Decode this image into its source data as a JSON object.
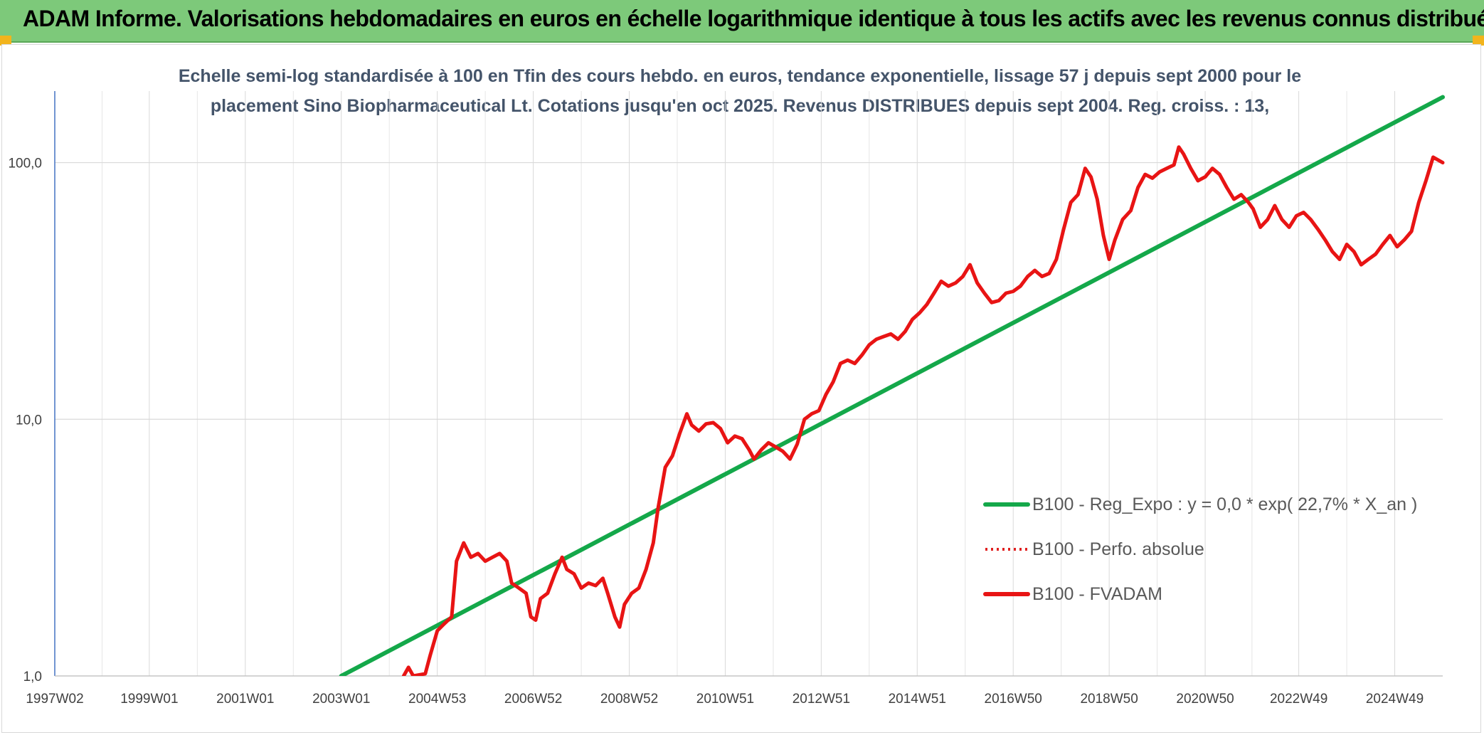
{
  "header": {
    "title": "ADAM Informe. Valorisations hebdomadaires en euros en échelle logarithmique identique à tous les actifs avec les revenus connus distribués"
  },
  "chart_data": {
    "type": "line",
    "title_lines": [
      "Echelle semi-log standardisée à 100 en Tfin des cours hebdo. en euros, tendance exponentielle, lissage 57 j depuis sept 2000 pour le",
      "placement Sino Biopharmaceutical Lt. Cotations jusqu'en oct 2025. Revenus DISTRIBUES depuis sept 2004. Reg. croiss. : 13,"
    ],
    "y_scale": "log",
    "ylim": [
      1,
      190
    ],
    "xlim": [
      1997.03,
      2025.95
    ],
    "y_ticks": [
      {
        "value": 1,
        "label": "1,0"
      },
      {
        "value": 10,
        "label": "10,0"
      },
      {
        "value": 100,
        "label": "100,0"
      }
    ],
    "x_ticks": [
      {
        "value": 1997.03,
        "label": "1997W02"
      },
      {
        "value": 1999.0,
        "label": "1999W01"
      },
      {
        "value": 2001.0,
        "label": "2001W01"
      },
      {
        "value": 2003.0,
        "label": "2003W01"
      },
      {
        "value": 2005.0,
        "label": "2004W53"
      },
      {
        "value": 2007.0,
        "label": "2006W52"
      },
      {
        "value": 2009.0,
        "label": "2008W52"
      },
      {
        "value": 2011.0,
        "label": "2010W51"
      },
      {
        "value": 2013.0,
        "label": "2012W51"
      },
      {
        "value": 2015.0,
        "label": "2014W51"
      },
      {
        "value": 2017.0,
        "label": "2016W50"
      },
      {
        "value": 2019.0,
        "label": "2018W50"
      },
      {
        "value": 2021.0,
        "label": "2020W50"
      },
      {
        "value": 2022.95,
        "label": "2022W49"
      },
      {
        "value": 2024.95,
        "label": "2024W49"
      }
    ],
    "grid": true,
    "legend_position": "right",
    "legend": [
      {
        "name": "B100 - Reg_Expo : y = 0,0 * exp( 22,7% *  X_an )",
        "color": "#14a84a",
        "style": "solid"
      },
      {
        "name": "B100 - Perfo. absolue",
        "color": "#e02020",
        "style": "dotted"
      },
      {
        "name": "B100 - FVADAM",
        "color": "#e81414",
        "style": "solid"
      }
    ],
    "series": [
      {
        "name": "B100 - Reg_Expo : y = 0,0 * exp( 22,7% *  X_an )",
        "color": "#14a84a",
        "points": [
          [
            2003.0,
            1.0
          ],
          [
            2025.95,
            180.0
          ]
        ]
      },
      {
        "name": "B100 - FVADAM",
        "color": "#e81414",
        "points": [
          [
            2004.3,
            1.0
          ],
          [
            2004.4,
            1.08
          ],
          [
            2004.5,
            1.0
          ],
          [
            2004.75,
            1.02
          ],
          [
            2004.85,
            1.2
          ],
          [
            2005.0,
            1.5
          ],
          [
            2005.15,
            1.6
          ],
          [
            2005.3,
            1.7
          ],
          [
            2005.4,
            2.8
          ],
          [
            2005.55,
            3.3
          ],
          [
            2005.7,
            2.9
          ],
          [
            2005.85,
            3.0
          ],
          [
            2006.0,
            2.8
          ],
          [
            2006.15,
            2.9
          ],
          [
            2006.3,
            3.0
          ],
          [
            2006.45,
            2.8
          ],
          [
            2006.55,
            2.3
          ],
          [
            2006.7,
            2.2
          ],
          [
            2006.85,
            2.1
          ],
          [
            2006.95,
            1.7
          ],
          [
            2007.05,
            1.65
          ],
          [
            2007.15,
            2.0
          ],
          [
            2007.3,
            2.1
          ],
          [
            2007.45,
            2.5
          ],
          [
            2007.6,
            2.9
          ],
          [
            2007.7,
            2.6
          ],
          [
            2007.85,
            2.5
          ],
          [
            2008.0,
            2.2
          ],
          [
            2008.15,
            2.3
          ],
          [
            2008.3,
            2.25
          ],
          [
            2008.45,
            2.4
          ],
          [
            2008.55,
            2.1
          ],
          [
            2008.7,
            1.7
          ],
          [
            2008.8,
            1.55
          ],
          [
            2008.9,
            1.9
          ],
          [
            2009.05,
            2.1
          ],
          [
            2009.2,
            2.2
          ],
          [
            2009.35,
            2.6
          ],
          [
            2009.5,
            3.3
          ],
          [
            2009.6,
            4.5
          ],
          [
            2009.75,
            6.5
          ],
          [
            2009.9,
            7.2
          ],
          [
            2010.05,
            8.8
          ],
          [
            2010.2,
            10.5
          ],
          [
            2010.3,
            9.5
          ],
          [
            2010.45,
            9.0
          ],
          [
            2010.6,
            9.6
          ],
          [
            2010.75,
            9.7
          ],
          [
            2010.9,
            9.2
          ],
          [
            2011.05,
            8.1
          ],
          [
            2011.2,
            8.6
          ],
          [
            2011.35,
            8.4
          ],
          [
            2011.5,
            7.6
          ],
          [
            2011.6,
            7.0
          ],
          [
            2011.75,
            7.6
          ],
          [
            2011.9,
            8.1
          ],
          [
            2012.05,
            7.8
          ],
          [
            2012.2,
            7.5
          ],
          [
            2012.35,
            7.0
          ],
          [
            2012.5,
            8.0
          ],
          [
            2012.65,
            10.0
          ],
          [
            2012.8,
            10.5
          ],
          [
            2012.95,
            10.8
          ],
          [
            2013.1,
            12.5
          ],
          [
            2013.25,
            14.0
          ],
          [
            2013.4,
            16.5
          ],
          [
            2013.55,
            17.0
          ],
          [
            2013.7,
            16.5
          ],
          [
            2013.85,
            17.8
          ],
          [
            2014.0,
            19.5
          ],
          [
            2014.15,
            20.5
          ],
          [
            2014.3,
            21.0
          ],
          [
            2014.45,
            21.5
          ],
          [
            2014.6,
            20.5
          ],
          [
            2014.75,
            22.0
          ],
          [
            2014.9,
            24.5
          ],
          [
            2015.05,
            26.0
          ],
          [
            2015.2,
            28.0
          ],
          [
            2015.35,
            31.0
          ],
          [
            2015.5,
            34.5
          ],
          [
            2015.65,
            33.0
          ],
          [
            2015.8,
            34.0
          ],
          [
            2015.95,
            36.0
          ],
          [
            2016.1,
            40.0
          ],
          [
            2016.25,
            34.0
          ],
          [
            2016.4,
            31.0
          ],
          [
            2016.55,
            28.5
          ],
          [
            2016.7,
            29.0
          ],
          [
            2016.85,
            31.0
          ],
          [
            2017.0,
            31.5
          ],
          [
            2017.15,
            33.0
          ],
          [
            2017.3,
            36.0
          ],
          [
            2017.45,
            38.0
          ],
          [
            2017.6,
            36.0
          ],
          [
            2017.75,
            37.0
          ],
          [
            2017.9,
            42.0
          ],
          [
            2018.05,
            55.0
          ],
          [
            2018.2,
            70.0
          ],
          [
            2018.35,
            75.0
          ],
          [
            2018.5,
            95.0
          ],
          [
            2018.62,
            88.0
          ],
          [
            2018.75,
            72.0
          ],
          [
            2018.88,
            52.0
          ],
          [
            2019.0,
            42.0
          ],
          [
            2019.12,
            50.0
          ],
          [
            2019.28,
            60.0
          ],
          [
            2019.45,
            65.0
          ],
          [
            2019.6,
            80.0
          ],
          [
            2019.75,
            90.0
          ],
          [
            2019.9,
            87.0
          ],
          [
            2020.05,
            92.0
          ],
          [
            2020.2,
            95.0
          ],
          [
            2020.35,
            98.0
          ],
          [
            2020.45,
            115.0
          ],
          [
            2020.55,
            108.0
          ],
          [
            2020.7,
            95.0
          ],
          [
            2020.85,
            85.0
          ],
          [
            2021.0,
            88.0
          ],
          [
            2021.15,
            95.0
          ],
          [
            2021.3,
            90.0
          ],
          [
            2021.45,
            80.0
          ],
          [
            2021.6,
            72.0
          ],
          [
            2021.75,
            75.0
          ],
          [
            2021.9,
            70.0
          ],
          [
            2022.0,
            66.0
          ],
          [
            2022.15,
            56.0
          ],
          [
            2022.3,
            60.0
          ],
          [
            2022.45,
            68.0
          ],
          [
            2022.6,
            60.0
          ],
          [
            2022.75,
            56.0
          ],
          [
            2022.9,
            62.0
          ],
          [
            2023.05,
            64.0
          ],
          [
            2023.2,
            60.0
          ],
          [
            2023.35,
            55.0
          ],
          [
            2023.5,
            50.0
          ],
          [
            2023.65,
            45.0
          ],
          [
            2023.8,
            42.0
          ],
          [
            2023.95,
            48.0
          ],
          [
            2024.1,
            45.0
          ],
          [
            2024.25,
            40.0
          ],
          [
            2024.4,
            42.0
          ],
          [
            2024.55,
            44.0
          ],
          [
            2024.7,
            48.0
          ],
          [
            2024.85,
            52.0
          ],
          [
            2025.0,
            47.0
          ],
          [
            2025.15,
            50.0
          ],
          [
            2025.3,
            54.0
          ],
          [
            2025.45,
            70.0
          ],
          [
            2025.6,
            85.0
          ],
          [
            2025.75,
            105.0
          ],
          [
            2025.95,
            100.0
          ]
        ]
      }
    ]
  }
}
